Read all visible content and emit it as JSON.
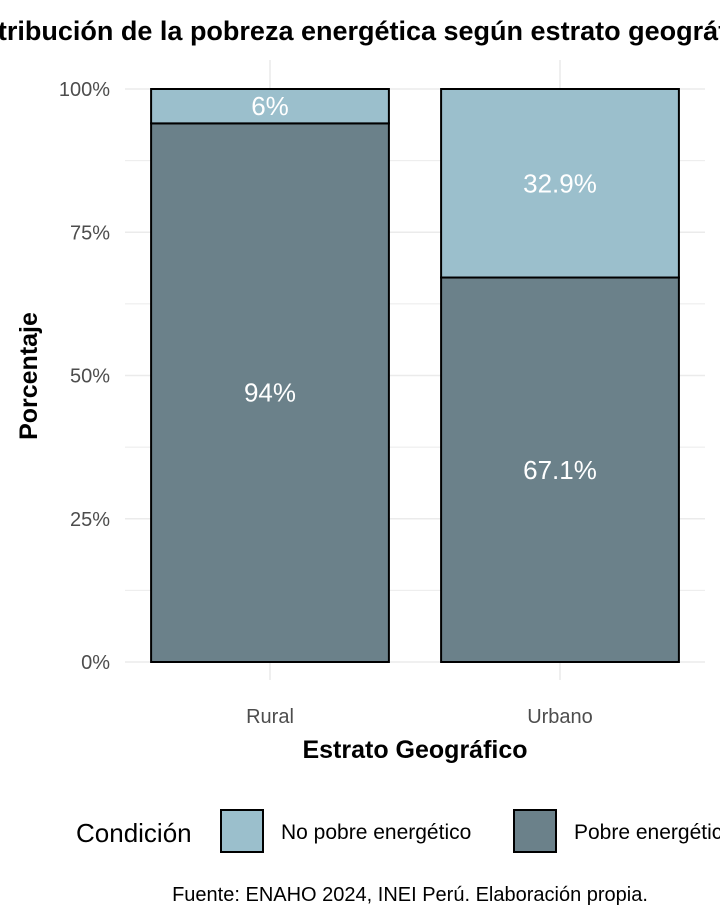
{
  "chart_data": {
    "type": "bar",
    "stacked": true,
    "title": "Distribución de la pobreza energética según estrato geográfico",
    "xlabel": "Estrato Geográfico",
    "ylabel": "Porcentaje",
    "categories": [
      "Rural",
      "Urbano"
    ],
    "ylim": [
      0,
      100
    ],
    "yticks": [
      "0%",
      "25%",
      "50%",
      "75%",
      "100%"
    ],
    "series": [
      {
        "name": "Pobre energético",
        "values": [
          94,
          67.1
        ],
        "labels": [
          "94%",
          "67.1%"
        ],
        "color": "#6b818a"
      },
      {
        "name": "No pobre energético",
        "values": [
          6,
          32.9
        ],
        "labels": [
          "6%",
          "32.9%"
        ],
        "color": "#9bbfcc"
      }
    ],
    "legend": {
      "title": "Condición",
      "position": "bottom",
      "entries": [
        "No pobre energético",
        "Pobre energético"
      ]
    },
    "grid": true,
    "caption": "Fuente: ENAHO 2024, INEI Perú. Elaboración propia."
  }
}
